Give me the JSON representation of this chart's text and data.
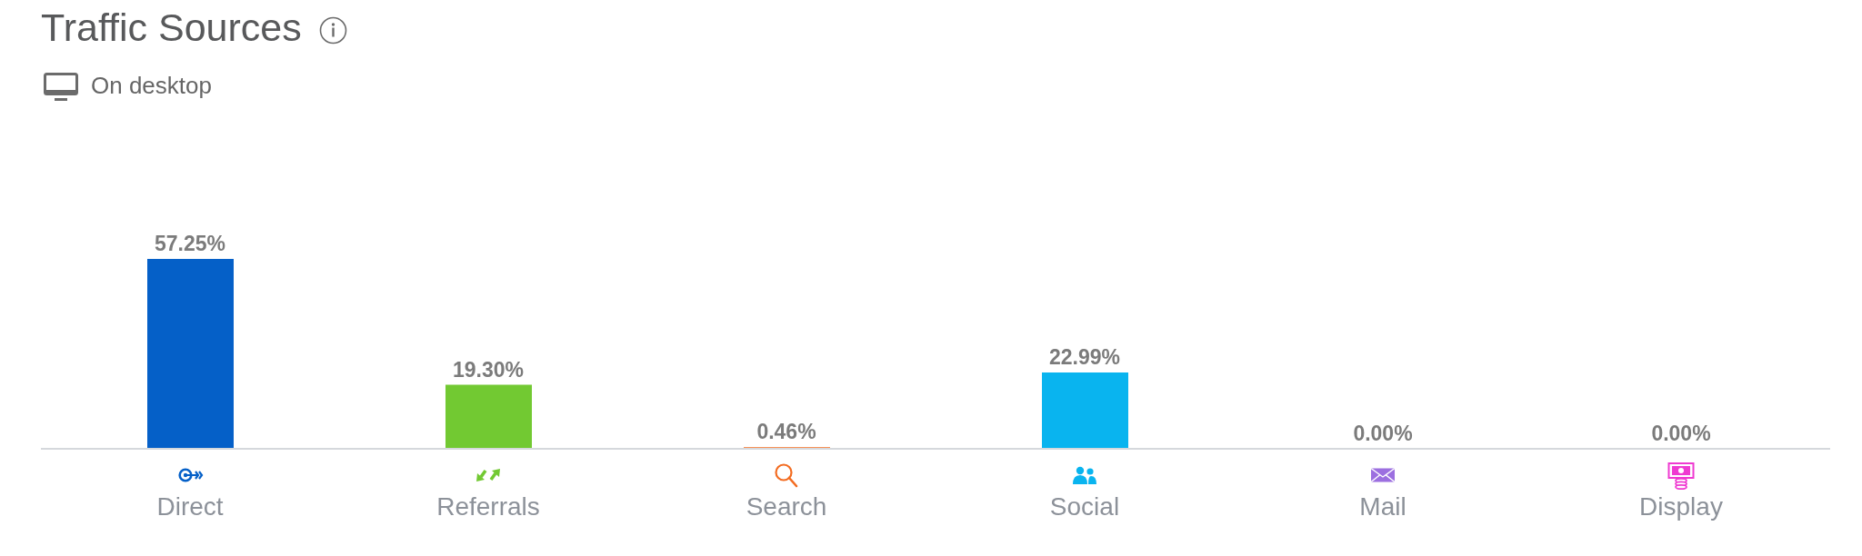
{
  "chart_data": {
    "type": "bar",
    "title": "Traffic Sources",
    "subtitle": "On desktop",
    "categories": [
      "Direct",
      "Referrals",
      "Search",
      "Social",
      "Mail",
      "Display"
    ],
    "values": [
      57.25,
      19.3,
      0.46,
      22.99,
      0.0,
      0.0
    ],
    "colors": [
      "#0560c8",
      "#72c932",
      "#f36c21",
      "#09b4ef",
      "#9c6fe0",
      "#ef3ad1"
    ],
    "value_labels": [
      "57.25%",
      "19.30%",
      "0.46%",
      "22.99%",
      "0.00%",
      "0.00%"
    ]
  }
}
